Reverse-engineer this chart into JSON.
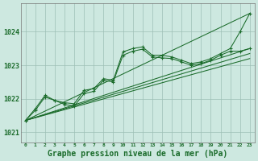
{
  "background_color": "#cde8e0",
  "plot_bg_color": "#cde8e0",
  "grid_color": "#9dbfb5",
  "line_color": "#1a6b2a",
  "xlabel": "Graphe pression niveau de la mer (hPa)",
  "xlim": [
    -0.5,
    23.5
  ],
  "ylim": [
    1020.7,
    1024.85
  ],
  "yticks": [
    1021,
    1022,
    1023,
    1024
  ],
  "xticks": [
    0,
    1,
    2,
    3,
    4,
    5,
    6,
    7,
    8,
    9,
    10,
    11,
    12,
    13,
    14,
    15,
    16,
    17,
    18,
    19,
    20,
    21,
    22,
    23
  ],
  "series_with_markers": [
    {
      "x": [
        0,
        1,
        2,
        3,
        4,
        5,
        6,
        7,
        8,
        9,
        10,
        11,
        12,
        13,
        14,
        15,
        16,
        17,
        18,
        19,
        20,
        21,
        22,
        23
      ],
      "y": [
        1021.35,
        1021.7,
        1022.1,
        1021.95,
        1021.88,
        1021.85,
        1022.25,
        1022.3,
        1022.6,
        1022.55,
        1023.4,
        1023.5,
        1023.55,
        1023.3,
        1023.3,
        1023.25,
        1023.15,
        1023.05,
        1023.1,
        1023.2,
        1023.35,
        1023.5,
        1024.0,
        1024.55
      ]
    },
    {
      "x": [
        0,
        1,
        2,
        3,
        4,
        5,
        6,
        7,
        8,
        9,
        10,
        11,
        12,
        13,
        14,
        15,
        16,
        17,
        18,
        19,
        20,
        21,
        22,
        23
      ],
      "y": [
        1021.35,
        1021.65,
        1022.05,
        1021.95,
        1021.83,
        1021.78,
        1022.15,
        1022.22,
        1022.55,
        1022.5,
        1023.3,
        1023.42,
        1023.48,
        1023.25,
        1023.22,
        1023.2,
        1023.1,
        1023.0,
        1023.05,
        1023.15,
        1023.3,
        1023.42,
        1023.42,
        1023.5
      ]
    }
  ],
  "series_straight": [
    {
      "x": [
        0,
        23
      ],
      "y": [
        1021.35,
        1024.55
      ]
    },
    {
      "x": [
        0,
        23
      ],
      "y": [
        1021.35,
        1023.5
      ]
    },
    {
      "x": [
        0,
        23
      ],
      "y": [
        1021.35,
        1023.35
      ]
    },
    {
      "x": [
        0,
        23
      ],
      "y": [
        1021.35,
        1023.2
      ]
    }
  ]
}
